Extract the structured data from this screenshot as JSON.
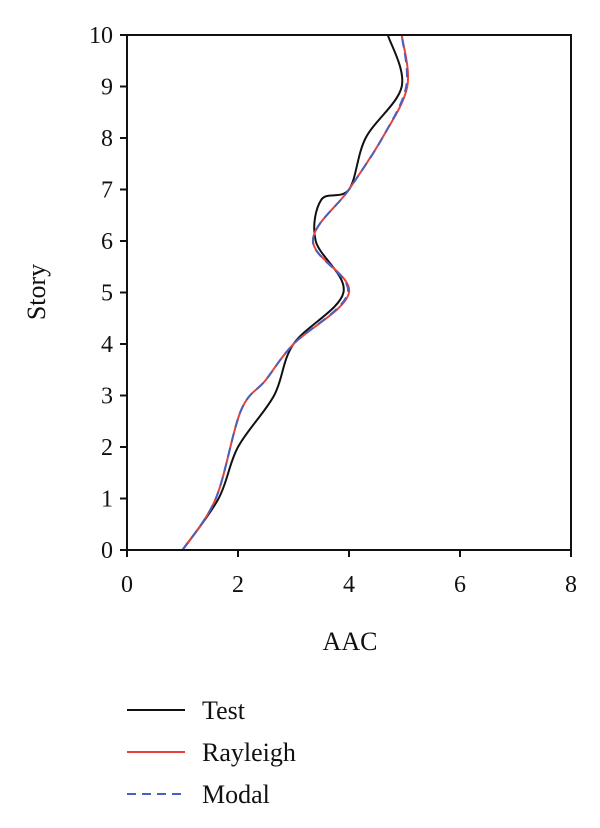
{
  "chart_data": {
    "type": "line",
    "xlabel": "AAC",
    "ylabel": "Story",
    "xlim": [
      0,
      8
    ],
    "ylim": [
      0,
      10
    ],
    "x_ticks": [
      0,
      2,
      4,
      6,
      8
    ],
    "y_ticks": [
      0,
      1,
      2,
      3,
      4,
      5,
      6,
      7,
      8,
      9,
      10
    ],
    "grid": false,
    "legend_position": "bottom",
    "series": [
      {
        "name": "Test",
        "color": "#111111",
        "dash": "solid",
        "x": [
          1.0,
          1.65,
          2.0,
          2.65,
          3.0,
          3.9,
          3.4,
          3.5,
          4.0,
          4.3,
          4.95,
          4.7
        ],
        "y": [
          0,
          1,
          2,
          3,
          4,
          5,
          6,
          6.8,
          7,
          8,
          9,
          10
        ]
      },
      {
        "name": "Rayleigh",
        "color": "#e8413a",
        "dash": "solid",
        "x": [
          1.0,
          1.6,
          2.05,
          2.5,
          3.0,
          4.0,
          3.35,
          4.0,
          4.6,
          5.05,
          4.95
        ],
        "y": [
          0,
          1,
          2.7,
          3.3,
          4,
          5,
          6,
          7,
          8,
          9,
          10
        ]
      },
      {
        "name": "Modal",
        "color": "#4a5fbf",
        "dash": "dashed",
        "x": [
          1.0,
          1.6,
          2.05,
          2.5,
          3.0,
          3.98,
          3.35,
          4.0,
          4.6,
          5.03,
          4.95
        ],
        "y": [
          0,
          1,
          2.7,
          3.3,
          4,
          5,
          6,
          7,
          8,
          9,
          10
        ]
      }
    ]
  }
}
